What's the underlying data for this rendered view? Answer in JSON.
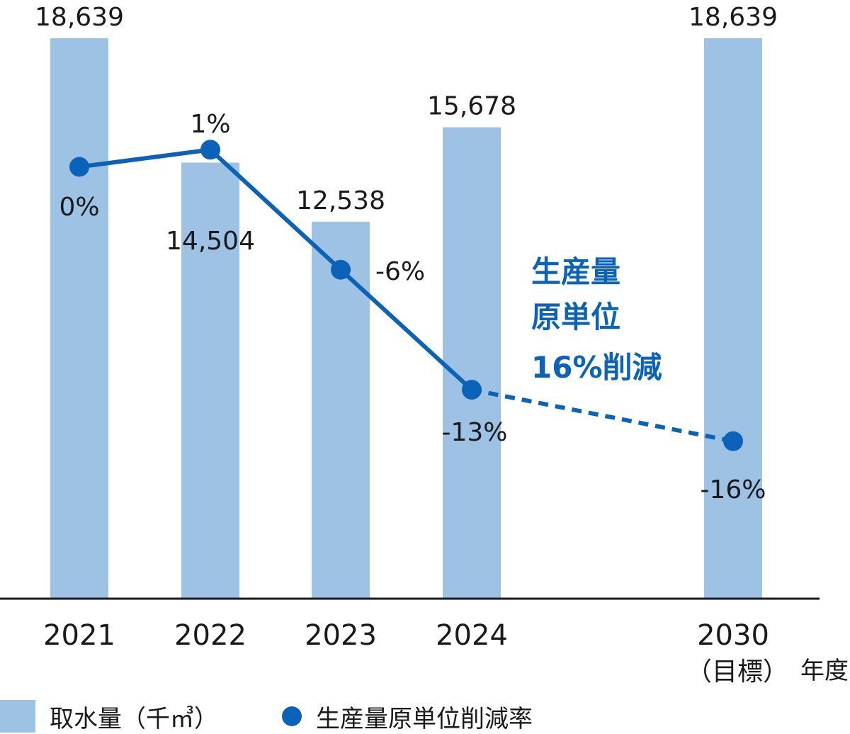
{
  "chart_data": {
    "type": "bar",
    "categories": [
      "2021",
      "2022",
      "2023",
      "2024",
      "2030"
    ],
    "category_sublabels": [
      "",
      "",
      "",
      "",
      "（目標）"
    ],
    "x_unit_label": "年度",
    "series": [
      {
        "name": "取水量（千㎥）",
        "type": "bar",
        "values": [
          18639,
          14504,
          12538,
          15678,
          18639
        ],
        "value_labels": [
          "18,639",
          "14,504",
          "12,538",
          "15,678",
          "18,639"
        ],
        "color": "#9ec2e4"
      },
      {
        "name": "生産量原単位削減率",
        "type": "line",
        "values": [
          0,
          1,
          -6,
          -13,
          -16
        ],
        "value_labels": [
          "0%",
          "1%",
          "-6%",
          "-13%",
          "-16%"
        ],
        "projected_from_index": 3,
        "color": "#0b63b9"
      }
    ],
    "annotation": [
      "生産量",
      "原単位",
      "16%削減"
    ],
    "annotation_color": "#0b63b9",
    "bar_ylim": [
      0,
      18639
    ],
    "line_ylim": [
      -40,
      9
    ],
    "grid": false,
    "legend_position": "bottom-left"
  }
}
